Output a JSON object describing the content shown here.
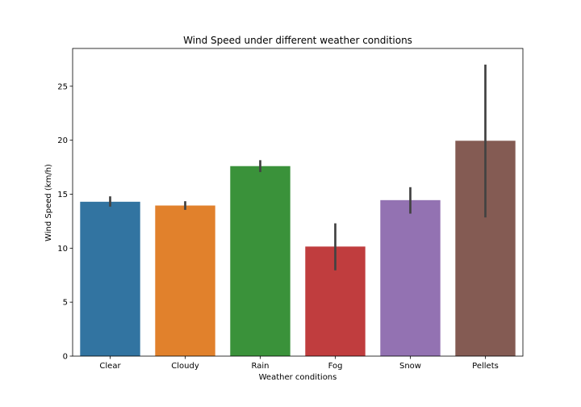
{
  "chart_data": {
    "type": "bar",
    "title": "Wind Speed under different weather conditions",
    "xlabel": "Weather conditions",
    "ylabel": "Wind Speed (km/h)",
    "ylim": [
      0,
      28.5
    ],
    "yticks": [
      0,
      5,
      10,
      15,
      20,
      25
    ],
    "grid": false,
    "categories": [
      "Clear",
      "Cloudy",
      "Rain",
      "Fog",
      "Snow",
      "Pellets"
    ],
    "values": [
      14.3,
      13.95,
      17.6,
      10.15,
      14.45,
      19.95
    ],
    "error_bars": [
      [
        13.85,
        14.8
      ],
      [
        13.55,
        14.35
      ],
      [
        17.05,
        18.15
      ],
      [
        7.95,
        12.3
      ],
      [
        13.2,
        15.65
      ],
      [
        12.85,
        27.0
      ]
    ],
    "colors": [
      "#3274a1",
      "#e1812c",
      "#3a923a",
      "#c03d3e",
      "#9372b2",
      "#845b53"
    ],
    "errorbar_color": "#424242"
  }
}
